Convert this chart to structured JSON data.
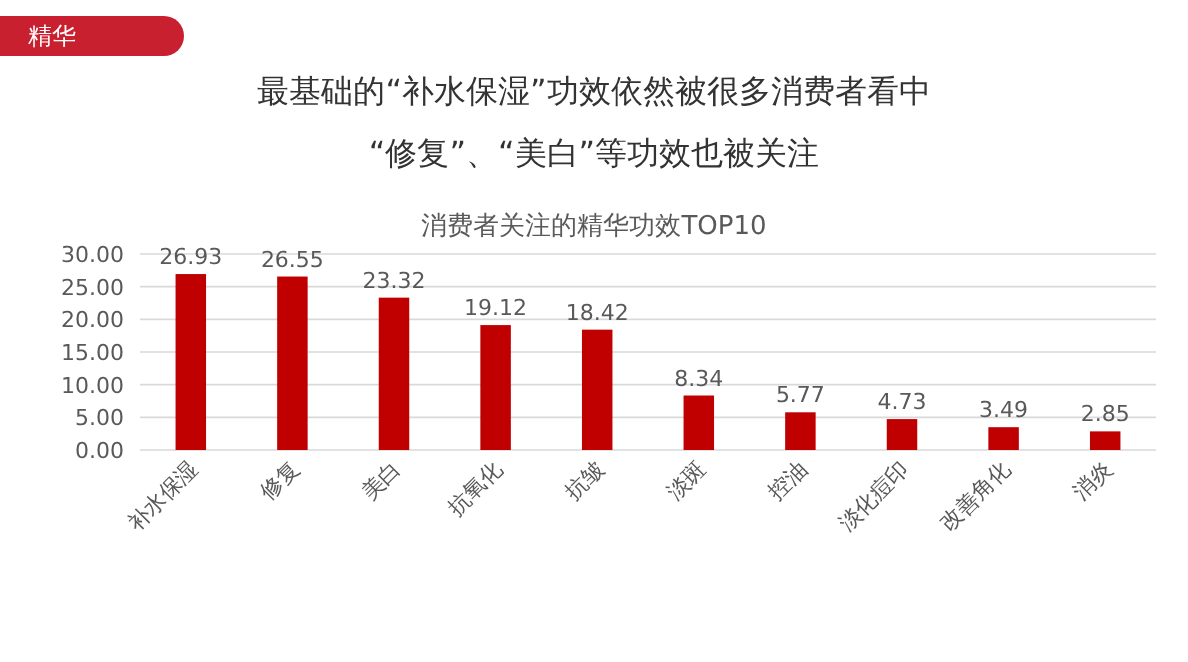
{
  "chart_data": {
    "type": "bar",
    "title": "最基础的“补水保湿”功效依然被很多消费者看中\n“修复”、“美白”等功效也被关注",
    "subtitle": "消费者关注的精华功效TOP10",
    "annotations": [
      "精华"
    ],
    "categories": [
      "补水保湿",
      "修复",
      "美白",
      "抗氧化",
      "抗皱",
      "淡斑",
      "控油",
      "淡化痘印",
      "改善角化",
      "消炎"
    ],
    "values": [
      26.93,
      26.55,
      23.32,
      19.12,
      18.42,
      8.34,
      5.77,
      4.73,
      3.49,
      2.85
    ],
    "color": "#c00000",
    "data_labels": true,
    "grid": "y",
    "ylim": [
      0,
      30
    ],
    "yticks": [
      {
        "value": 0,
        "label": "0.00"
      },
      {
        "value": 5,
        "label": "5.00"
      },
      {
        "value": 10,
        "label": "10.00"
      },
      {
        "value": 15,
        "label": "15.00"
      },
      {
        "value": 20,
        "label": "20.00"
      },
      {
        "value": 25,
        "label": "25.00"
      },
      {
        "value": 30,
        "label": "30.00"
      }
    ]
  }
}
